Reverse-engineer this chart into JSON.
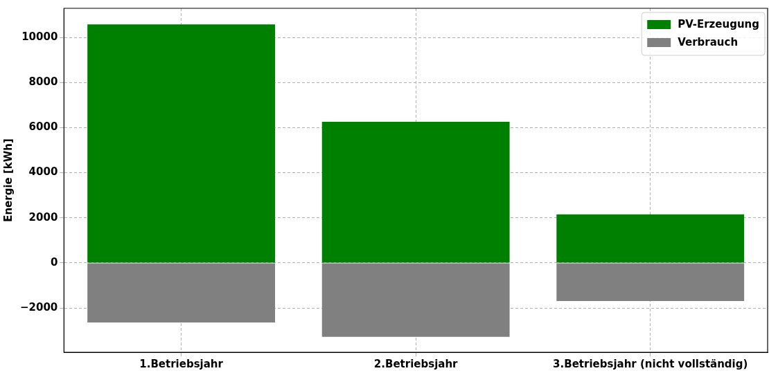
{
  "chart_data": {
    "type": "bar",
    "ylabel": "Energie [kWh]",
    "categories": [
      "1.Betriebsjahr",
      "2.Betriebsjahr",
      "3.Betriebsjahr (nicht vollständig)"
    ],
    "stacked": true,
    "series": [
      {
        "name": "PV-Erzeugung",
        "color": "#008000",
        "values": [
          10580,
          6260,
          2150
        ]
      },
      {
        "name": "Verbrauch",
        "color": "#808080",
        "values": [
          -2640,
          -3280,
          -1690
        ]
      }
    ],
    "ylim": [
      -3960,
      11290
    ],
    "yticks": [
      -2000,
      0,
      2000,
      4000,
      6000,
      8000,
      10000
    ],
    "grid": true,
    "legend": "top right"
  }
}
